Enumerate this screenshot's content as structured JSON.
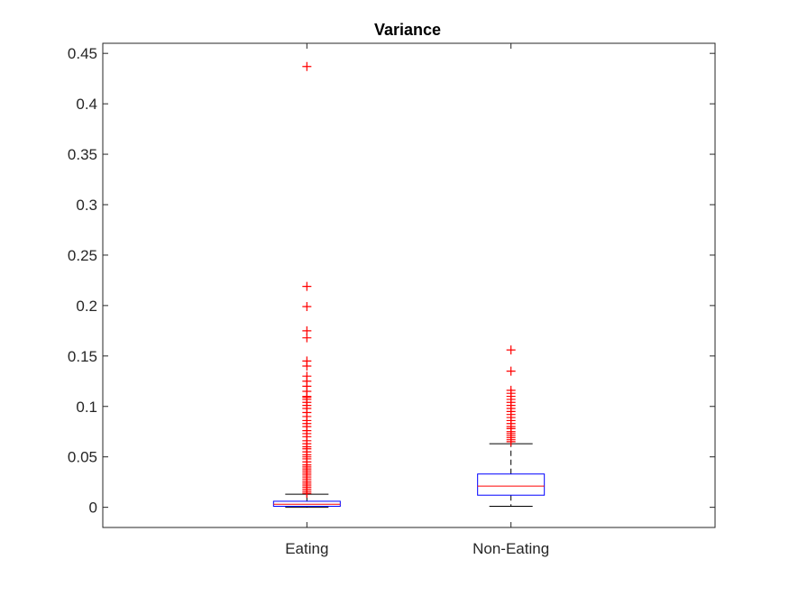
{
  "chart_data": {
    "type": "boxplot",
    "title": "Variance",
    "xlabel": "",
    "ylabel": "",
    "categories": [
      "Eating",
      "Non-Eating"
    ],
    "ylim": [
      -0.02,
      0.46
    ],
    "yticks": [
      0,
      0.05,
      0.1,
      0.15,
      0.2,
      0.25,
      0.3,
      0.35,
      0.4,
      0.45
    ],
    "ytick_labels": [
      "0",
      "0.05",
      "0.1",
      "0.15",
      "0.2",
      "0.25",
      "0.3",
      "0.35",
      "0.4",
      "0.45"
    ],
    "grid": false,
    "colors": {
      "box": "#0000ff",
      "median": "#ff0000",
      "whisker": "#000000",
      "outlier": "#ff0000",
      "axes": "#262626"
    },
    "boxes": [
      {
        "category": "Eating",
        "min": 0.0,
        "q1": 0.001,
        "median": 0.003,
        "q3": 0.006,
        "max": 0.013,
        "outliers": [
          0.014,
          0.016,
          0.018,
          0.02,
          0.022,
          0.024,
          0.026,
          0.028,
          0.03,
          0.032,
          0.034,
          0.036,
          0.038,
          0.04,
          0.042,
          0.045,
          0.048,
          0.05,
          0.052,
          0.055,
          0.058,
          0.06,
          0.063,
          0.066,
          0.07,
          0.073,
          0.076,
          0.08,
          0.083,
          0.086,
          0.09,
          0.094,
          0.098,
          0.101,
          0.104,
          0.107,
          0.109,
          0.11,
          0.115,
          0.12,
          0.125,
          0.13,
          0.14,
          0.145,
          0.168,
          0.175,
          0.199,
          0.219,
          0.437
        ]
      },
      {
        "category": "Non-Eating",
        "min": 0.001,
        "q1": 0.012,
        "median": 0.021,
        "q3": 0.033,
        "max": 0.063,
        "outliers": [
          0.065,
          0.067,
          0.069,
          0.071,
          0.073,
          0.075,
          0.078,
          0.08,
          0.083,
          0.086,
          0.089,
          0.092,
          0.095,
          0.098,
          0.101,
          0.104,
          0.107,
          0.11,
          0.113,
          0.116,
          0.135,
          0.156
        ]
      }
    ]
  }
}
